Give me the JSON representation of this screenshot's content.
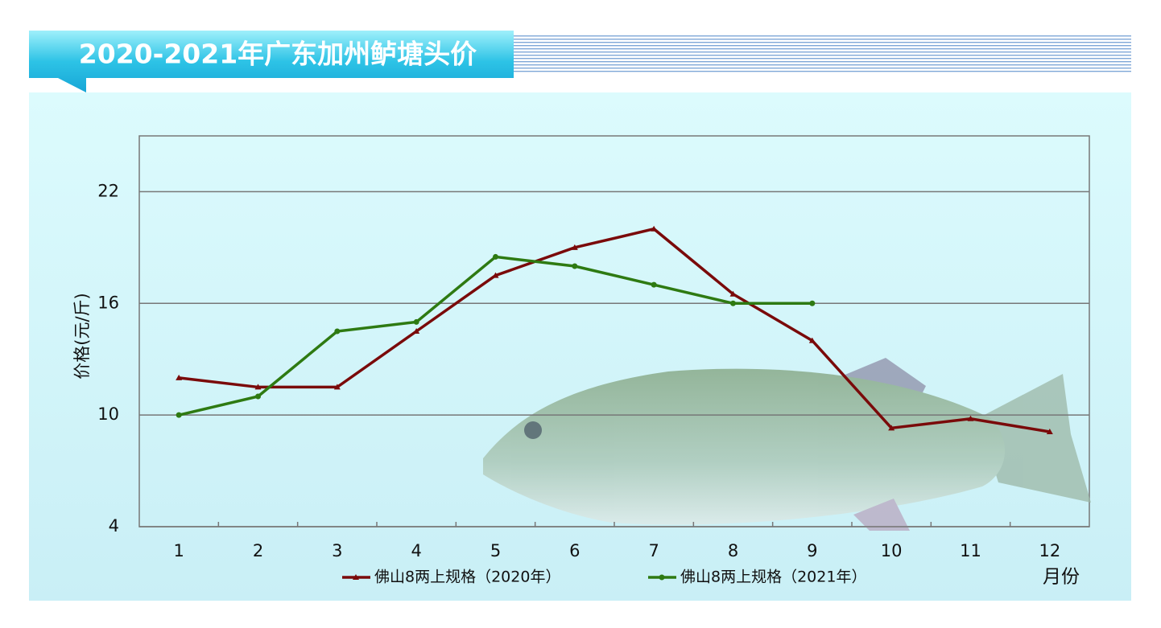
{
  "chart_data": {
    "type": "line",
    "title": "2020-2021年广东加州鲈塘头价",
    "x_label": "月份",
    "y_label": "价格(元/斤)",
    "categories": [
      "1",
      "2",
      "3",
      "4",
      "5",
      "6",
      "7",
      "8",
      "9",
      "10",
      "11",
      "12"
    ],
    "ylim": [
      4,
      25
    ],
    "yticks": [
      4,
      10,
      16,
      22
    ],
    "grid": true,
    "legend": "bottom",
    "series": [
      {
        "name": "佛山8两上规格（2020年）",
        "color": "#7a0a0a",
        "marker": "triangle",
        "values": [
          12.0,
          11.5,
          11.5,
          14.5,
          17.5,
          19.0,
          20.0,
          16.5,
          14.0,
          9.3,
          9.8,
          9.1
        ]
      },
      {
        "name": "佛山8两上规格（2021年）",
        "color": "#2e7a12",
        "marker": "circle",
        "values": [
          10.0,
          11.0,
          14.5,
          15.0,
          18.5,
          18.0,
          17.0,
          16.0,
          16.0,
          null,
          null,
          null
        ]
      }
    ]
  }
}
